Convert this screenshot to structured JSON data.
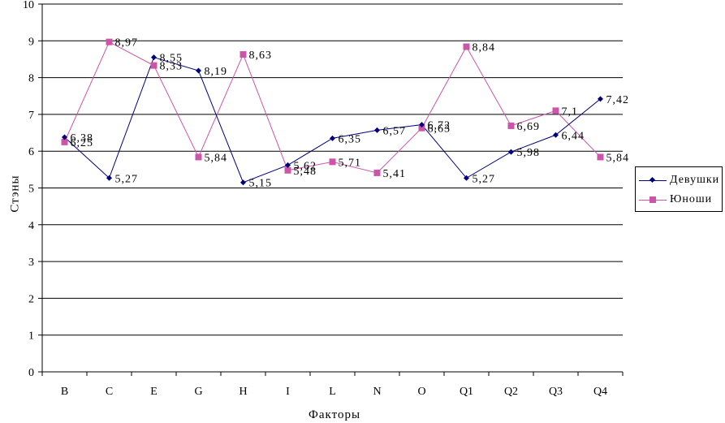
{
  "chart_data": {
    "type": "line",
    "title": "",
    "xlabel": "Факторы",
    "ylabel": "Стэны",
    "categories": [
      "B",
      "C",
      "E",
      "G",
      "H",
      "I",
      "L",
      "N",
      "O",
      "Q1",
      "Q2",
      "Q3",
      "Q4"
    ],
    "ylim": [
      0,
      10
    ],
    "yticks": [
      "0",
      "1",
      "2",
      "3",
      "4",
      "5",
      "6",
      "7",
      "8",
      "9",
      "10"
    ],
    "grid": "horizontal",
    "legend_position": "right",
    "series": [
      {
        "name": "Девушки",
        "color": "#000080",
        "marker": "diamond",
        "values": [
          6.38,
          5.27,
          8.55,
          8.19,
          5.15,
          5.62,
          6.35,
          6.57,
          6.72,
          5.27,
          5.98,
          6.44,
          7.42
        ],
        "labels": [
          "6,38",
          "5,27",
          "8,55",
          "8,19",
          "5,15",
          "5,62",
          "6,35",
          "6,57",
          "6,72",
          "5,27",
          "5,98",
          "6,44",
          "7,42"
        ]
      },
      {
        "name": "Юноши",
        "color": "#cc55aa",
        "marker": "square",
        "values": [
          6.25,
          8.97,
          8.33,
          5.84,
          8.63,
          5.48,
          5.71,
          5.41,
          6.63,
          8.84,
          6.69,
          7.1,
          5.84
        ],
        "labels": [
          "6,25",
          "8,97",
          "8,33",
          "5,84",
          "8,63",
          "5,48",
          "5,71",
          "5,41",
          "6,63",
          "8,84",
          "6,69",
          "7,1",
          "5,84"
        ]
      }
    ]
  }
}
